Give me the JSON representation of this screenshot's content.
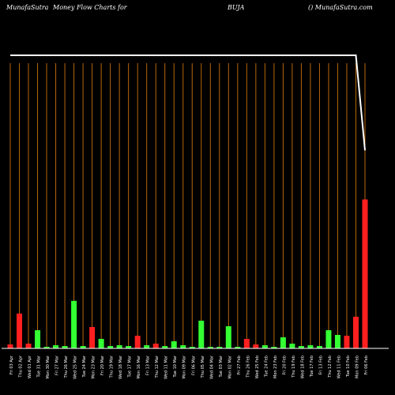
{
  "header": {
    "site": "MunafaSutra",
    "title": "Money Flow  Charts for",
    "symbol": "BUJA",
    "copyright": "() MunafaSutra.com"
  },
  "chart_data": {
    "type": "bar",
    "title": "Money Flow Charts for BUJA",
    "categories": [
      "Fri 03 Apr 2026",
      "Thu 02 Apr 2026",
      "Wed 01 Apr 2026",
      "Tue 31 Mar 2026",
      "Mon 30 Mar 2026",
      "Fri 27 Mar 2026",
      "Thu 26 Mar 2026",
      "Wed 25 Mar 2026",
      "Tue 24 Mar 2026",
      "Mon 23 Mar 2026",
      "Fri 20 Mar 2026",
      "Thu 19 Mar 2026",
      "Wed 18 Mar 2026",
      "Tue 17 Mar 2026",
      "Mon 16 Mar 2026",
      "Fri 13 Mar 2026",
      "Thu 12 Mar 2026",
      "Wed 11 Mar 2026",
      "Tue 10 Mar 2026",
      "Mon 09 Mar 2026",
      "Fri 06 Mar 2026",
      "Thu 05 Mar 2026",
      "Wed 04 Mar 2026",
      "Tue 03 Mar 2026",
      "Mon 02 Mar 2026",
      "Fri 27 Feb 2026",
      "Thu 26 Feb 2026",
      "Wed 25 Feb 2026",
      "Tue 24 Feb 2026",
      "Mon 23 Feb 2026",
      "Fri 20 Feb 2026",
      "Thu 19 Feb 2026",
      "Wed 18 Feb 2026",
      "Tue 17 Feb 2026",
      "Fri 13 Feb 2026",
      "Thu 12 Feb 2026",
      "Wed 11 Feb 2026",
      "Tue 10 Feb 2026",
      "Mon 09 Feb 2026",
      "Fri 06 Feb 2026"
    ],
    "tick_labels": [
      "Fri 03 Apr",
      "Thu 02 Apr",
      "Wed 01 Apr",
      "Tue 31 Mar",
      "Mon 30 Mar",
      "Fri 27 Mar",
      "Thu 26 Mar",
      "Wed 25 Mar",
      "Tue 24 Mar",
      "Mon 23 Mar",
      "Fri 20 Mar",
      "Thu 19 Mar",
      "Wed 18 Mar",
      "Tue 17 Mar",
      "Mon 16 Mar",
      "Fri 13 Mar",
      "Thu 12 Mar",
      "Wed 11 Mar",
      "Tue 10 Mar",
      "Mon 09 Mar",
      "Fri 06 Mar",
      "Thu 05 Mar",
      "Wed 04 Mar",
      "Tue 03 Mar",
      "Mon 02 Mar",
      "Fri 27 Feb",
      "Thu 26 Feb",
      "Wed 25 Feb",
      "Tue 24 Feb",
      "Mon 23 Feb",
      "Fri 20 Feb",
      "Thu 19 Feb",
      "Wed 18 Feb",
      "Tue 17 Feb",
      "Fri 13 Feb",
      "Thu 12 Feb",
      "Wed 11 Feb",
      "Tue 10 Feb",
      "Mon 09 Feb",
      "Fri 06 Feb"
    ],
    "values": [
      5,
      44,
      6,
      23,
      2,
      4,
      3,
      60,
      3,
      27,
      12,
      3,
      4,
      3,
      16,
      4,
      6,
      3,
      9,
      4,
      2,
      35,
      2,
      2,
      28,
      2,
      12,
      5,
      4,
      2,
      14,
      6,
      3,
      4,
      3,
      23,
      17,
      16,
      40,
      188
    ],
    "colors": [
      "red",
      "red",
      "red",
      "green",
      "green",
      "green",
      "green",
      "green",
      "green",
      "red",
      "green",
      "green",
      "green",
      "green",
      "red",
      "green",
      "red",
      "green",
      "green",
      "green",
      "green",
      "green",
      "green",
      "green",
      "green",
      "green",
      "red",
      "red",
      "green",
      "green",
      "green",
      "green",
      "green",
      "green",
      "green",
      "green",
      "green",
      "red",
      "red",
      "red"
    ],
    "price_line": [
      370,
      370,
      370,
      370,
      370,
      370,
      370,
      370,
      370,
      370,
      370,
      370,
      370,
      370,
      370,
      370,
      370,
      370,
      370,
      370,
      370,
      370,
      370,
      370,
      370,
      370,
      370,
      370,
      370,
      370,
      370,
      370,
      370,
      370,
      370,
      370,
      370,
      370,
      370,
      250
    ],
    "ylim": [
      0,
      360
    ],
    "grid": true,
    "palette": {
      "background": "#000000",
      "green": "#33ff33",
      "red": "#ff1f1f",
      "grid": "#b8660b",
      "line": "#ffffff",
      "axis": "#ffffff",
      "label": "#ffffff"
    }
  }
}
